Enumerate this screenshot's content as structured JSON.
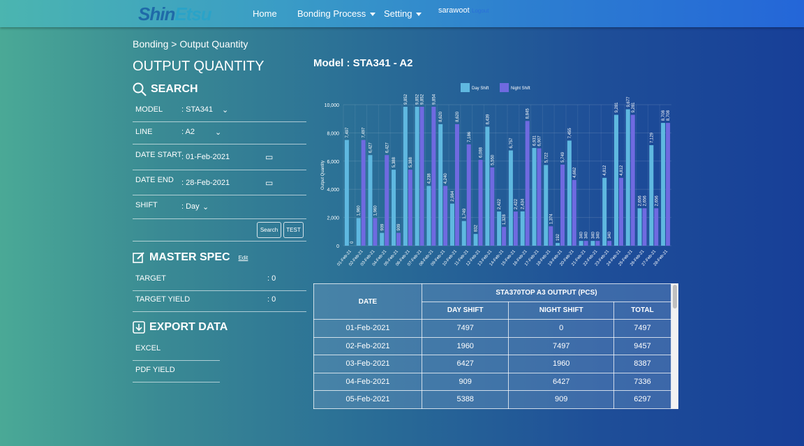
{
  "nav": {
    "logo": "ShinEtsu",
    "home": "Home",
    "bonding": "Bonding Process",
    "setting": "Setting",
    "user": "sarawoot",
    "logout": "Logout"
  },
  "breadcrumb": "Bonding > Output Quantity",
  "page_title": "OUTPUT QUANTITY",
  "search": {
    "heading": "SEARCH",
    "fields": [
      {
        "label": "MODEL",
        "value": ": STA341"
      },
      {
        "label": "LINE",
        "value": ": A2"
      },
      {
        "label": "DATE START",
        "value": ":   01-Feb-2021"
      },
      {
        "label": "DATE END",
        "value": ":   28-Feb-2021"
      },
      {
        "label": "SHIFT",
        "value": ": Day"
      }
    ],
    "search_btn": "Search",
    "test_btn": "TEST"
  },
  "master": {
    "heading": "MASTER SPEC",
    "edit": "Edit",
    "rows": [
      {
        "label": "TARGET",
        "value": ": 0"
      },
      {
        "label": "TARGET YIELD",
        "value": ": 0"
      }
    ]
  },
  "export": {
    "heading": "EXPORT DATA",
    "items": [
      "EXCEL",
      "PDF YIELD"
    ]
  },
  "model_title": "Model : STA341 - A2",
  "table": {
    "date_header": "DATE",
    "group_header": "STA370TOP A3 OUTPUT (PCS)",
    "cols": [
      "DAY SHIFT",
      "NIGHT SHIFT",
      "TOTAL"
    ],
    "rows": [
      [
        "01-Feb-2021",
        "7497",
        "0",
        "7497"
      ],
      [
        "02-Feb-2021",
        "1960",
        "7497",
        "9457"
      ],
      [
        "03-Feb-2021",
        "6427",
        "1960",
        "8387"
      ],
      [
        "04-Feb-2021",
        "909",
        "6427",
        "7336"
      ],
      [
        "05-Feb-2021",
        "5388",
        "909",
        "6297"
      ]
    ]
  },
  "chart_data": {
    "type": "bar",
    "ylabel": "Output Quantity",
    "ylim": [
      0,
      10000
    ],
    "yticks": [
      "0",
      "2,000",
      "4,000",
      "6,000",
      "8,000",
      "10,000"
    ],
    "categories": [
      "01-Feb-21",
      "02-Feb-21",
      "03-Feb-21",
      "04-Feb-21",
      "05-Feb-21",
      "06-Feb-21",
      "07-Feb-21",
      "08-Feb-21",
      "09-Feb-21",
      "10-Feb-21",
      "11-Feb-21",
      "12-Feb-21",
      "13-Feb-21",
      "14-Feb-21",
      "15-Feb-21",
      "16-Feb-21",
      "17-Feb-21",
      "18-Feb-21",
      "19-Feb-21",
      "20-Feb-21",
      "21-Feb-21",
      "22-Feb-21",
      "23-Feb-21",
      "24-Feb-21",
      "25-Feb-21",
      "26-Feb-21",
      "27-Feb-21",
      "28-Feb-21"
    ],
    "series": [
      {
        "name": "Day Shift",
        "color": "#5fb8e0",
        "values": [
          7497,
          1960,
          6427,
          909,
          5388,
          9852,
          9852,
          4238,
          8620,
          2984,
          1749,
          832,
          8439,
          2422,
          6757,
          2434,
          6931,
          5722,
          192,
          7455,
          340,
          340,
          4812,
          9281,
          9677,
          2656,
          7129,
          8708
        ]
      },
      {
        "name": "Night Shift",
        "color": "#6f6ae0",
        "values": [
          0,
          7497,
          1960,
          6427,
          909,
          5388,
          9852,
          9854,
          4240,
          8620,
          7186,
          6088,
          5550,
          1328,
          2422,
          8845,
          6907,
          1374,
          5749,
          4662,
          340,
          340,
          340,
          4812,
          9281,
          2656,
          2656,
          8708
        ]
      }
    ]
  }
}
